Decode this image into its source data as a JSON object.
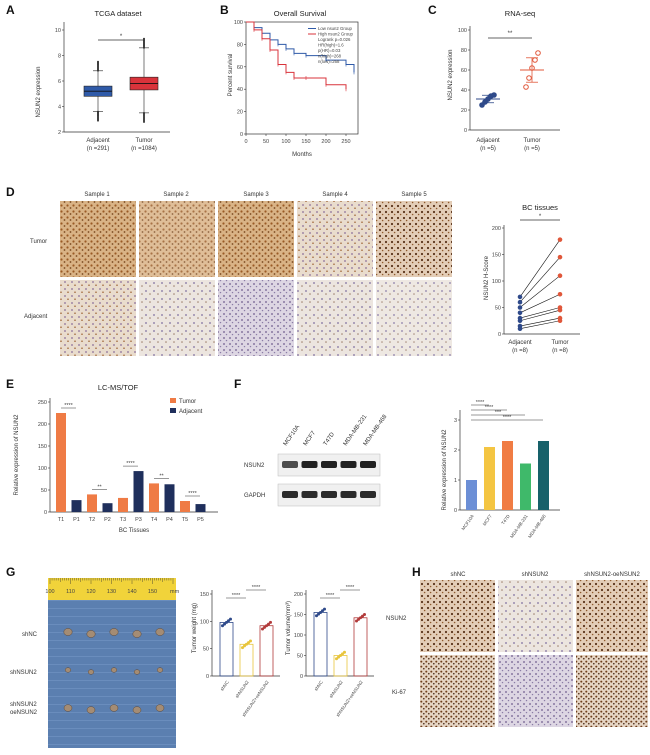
{
  "panels": {
    "A": "A",
    "B": "B",
    "C": "C",
    "D": "D",
    "E": "E",
    "F": "F",
    "G": "G",
    "H": "H"
  },
  "panelA": {
    "title": "TCGA dataset",
    "ylabel": "NSUN2 expression",
    "sig": "*",
    "yticks": [
      "2",
      "4",
      "6",
      "8",
      "10"
    ],
    "groups": [
      {
        "name": "Adjacent",
        "n": "(n =291)",
        "color": "#2f5aa8"
      },
      {
        "name": "Tumor",
        "n": "(n =1084)",
        "color": "#d9333b"
      }
    ]
  },
  "panelB": {
    "title": "Overall Survival",
    "ylabel": "Percent survival",
    "xlabel": "Months",
    "yticks": [
      "0",
      "20",
      "40",
      "60",
      "80",
      "100"
    ],
    "xticks": [
      "0",
      "50",
      "100",
      "150",
      "200",
      "250"
    ],
    "legend": [
      "Low nsun2 Group",
      "High nsun2 Group",
      "Logrank p=0.026",
      "HR(high)=1.6",
      "p(HR)=0.03",
      "n(high)=268",
      "n(low)=268"
    ],
    "colors": {
      "low": "#2f5aa8",
      "high": "#d9333b"
    }
  },
  "panelC": {
    "title": "RNA-seq",
    "ylabel": "NSUN2 expression",
    "sig": "**",
    "yticks": [
      "0",
      "20",
      "40",
      "60",
      "80",
      "100"
    ],
    "groups": [
      {
        "name": "Adjacent",
        "n": "(n =5)",
        "color": "#2f4a8a"
      },
      {
        "name": "Tumor",
        "n": "(n =5)",
        "color": "#e0573a"
      }
    ]
  },
  "panelD": {
    "samples": [
      "Sample 1",
      "Sample 2",
      "Sample 3",
      "Sample 4",
      "Sample 5"
    ],
    "rows": [
      "Tumor",
      "Adjacent"
    ],
    "plot": {
      "title": "BC tissues",
      "sig": "*",
      "ylabel": "NSUN2 H-Score",
      "yticks": [
        "0",
        "50",
        "100",
        "150",
        "200"
      ],
      "groups": [
        "Adjacent",
        "Tumor"
      ],
      "n": [
        "(n =8)",
        "(n =8)"
      ],
      "colors": {
        "adjacent": "#2f4a8a",
        "tumor": "#e0573a"
      }
    }
  },
  "panelE": {
    "title": "LC-MS/TOF",
    "ylabel": "Relative expression of NSUN2",
    "xlabel": "BC Tissues",
    "legend": [
      "Tumor",
      "Adjacent"
    ],
    "colors": {
      "tumor": "#ef7b45",
      "adjacent": "#1f2f5c"
    },
    "yticks": [
      "0",
      "50",
      "100",
      "150",
      "200",
      "250"
    ],
    "categories": [
      "T1",
      "P1",
      "T2",
      "P2",
      "T3",
      "P3",
      "T4",
      "P4",
      "T5",
      "P5"
    ],
    "sigs": [
      "****",
      "**",
      "****",
      "**",
      "****"
    ]
  },
  "panelF": {
    "cells": [
      "MCF10A",
      "MCF7",
      "T47D",
      "MDA-MB-231",
      "MDA-MB-468"
    ],
    "blots": [
      "NSUN2",
      "GAPDH"
    ],
    "ylabel": "Relative expression of NSUN2",
    "yticks": [
      "0",
      "1",
      "2",
      "3"
    ],
    "sigs": [
      "****",
      "****",
      "***",
      "****"
    ]
  },
  "panelG": {
    "ruler": [
      "100",
      "110",
      "120",
      "130",
      "140",
      "150"
    ],
    "ruler_unit": "mm",
    "groups": [
      "shNC",
      "shNSUN2",
      "shNSUN2-\noeNSUN2"
    ],
    "group_labels": [
      "shNC",
      "shNSUN2",
      "shNSUN2",
      "oeNSUN2"
    ],
    "weight": {
      "ylabel": "Tumor weight (mg)",
      "yticks": [
        "0",
        "50",
        "100",
        "150"
      ],
      "sigs": [
        "****",
        "****"
      ],
      "xcats": [
        "shNC",
        "shNSUN2",
        "shNSUN2+oeNSUN2"
      ]
    },
    "volume": {
      "ylabel": "Tumor volume(mm³)",
      "yticks": [
        "0",
        "50",
        "100",
        "150",
        "200"
      ],
      "sigs": [
        "****",
        "****"
      ],
      "xcats": [
        "shNC",
        "shNSUN2",
        "shNSUN2+oeNSUN2"
      ]
    }
  },
  "panelH": {
    "cols": [
      "shNC",
      "shNSUN2",
      "shNSUN2-oeNSUN2"
    ],
    "rows": [
      "NSUN2",
      "Ki-67"
    ]
  },
  "chart_data": [
    {
      "type": "box",
      "panel": "A",
      "title": "TCGA dataset",
      "ylabel": "NSUN2 expression",
      "ylim": [
        2,
        10
      ],
      "categories": [
        "Adjacent",
        "Tumor"
      ],
      "series": [
        {
          "name": "Adjacent",
          "q1": 4.8,
          "median": 5.2,
          "q3": 5.6,
          "min": 3.6,
          "max": 6.8
        },
        {
          "name": "Tumor",
          "q1": 5.3,
          "median": 5.8,
          "q3": 6.3,
          "min": 3.5,
          "max": 8.6
        }
      ]
    },
    {
      "type": "line",
      "panel": "B",
      "title": "Overall Survival",
      "xlabel": "Months",
      "ylabel": "Percent survival",
      "xlim": [
        0,
        280
      ],
      "ylim": [
        0,
        100
      ],
      "series": [
        {
          "name": "Low nsun2 Group",
          "x": [
            0,
            20,
            40,
            60,
            80,
            100,
            120,
            150,
            200,
            250,
            270
          ],
          "y": [
            100,
            95,
            90,
            84,
            80,
            76,
            72,
            70,
            66,
            62,
            55
          ]
        },
        {
          "name": "High nsun2 Group",
          "x": [
            0,
            20,
            40,
            60,
            80,
            100,
            120,
            150,
            200,
            250
          ],
          "y": [
            100,
            93,
            85,
            75,
            62,
            55,
            50,
            50,
            44,
            40
          ]
        }
      ]
    },
    {
      "type": "scatter",
      "panel": "C",
      "title": "RNA-seq",
      "ylabel": "NSUN2 expression",
      "ylim": [
        0,
        100
      ],
      "categories": [
        "Adjacent",
        "Tumor"
      ],
      "series": [
        {
          "name": "Adjacent",
          "values": [
            25,
            28,
            31,
            34,
            35
          ],
          "mean": 31
        },
        {
          "name": "Tumor",
          "values": [
            43,
            52,
            62,
            70,
            77
          ],
          "mean": 60
        }
      ]
    },
    {
      "type": "line",
      "panel": "D",
      "title": "BC tissues",
      "ylabel": "NSUN2 H-Score",
      "ylim": [
        0,
        200
      ],
      "categories": [
        "Adjacent",
        "Tumor"
      ],
      "pairs": [
        [
          70,
          178
        ],
        [
          60,
          145
        ],
        [
          50,
          110
        ],
        [
          40,
          75
        ],
        [
          30,
          50
        ],
        [
          25,
          45
        ],
        [
          15,
          30
        ],
        [
          10,
          25
        ]
      ]
    },
    {
      "type": "bar",
      "panel": "E",
      "title": "LC-MS/TOF",
      "ylabel": "Relative expression of NSUN2",
      "xlabel": "BC Tissues",
      "ylim": [
        0,
        250
      ],
      "categories": [
        "T1",
        "P1",
        "T2",
        "P2",
        "T3",
        "P3",
        "T4",
        "P4",
        "T5",
        "P5"
      ],
      "values": [
        225,
        27,
        40,
        20,
        32,
        93,
        65,
        63,
        25,
        18
      ]
    },
    {
      "type": "bar",
      "panel": "F",
      "ylabel": "Relative expression of NSUN2",
      "ylim": [
        0,
        3
      ],
      "categories": [
        "MCF10A",
        "MCF7",
        "T47D",
        "MDA-MB-231",
        "MDA-MB-468"
      ],
      "values": [
        1.0,
        2.1,
        2.3,
        1.55,
        2.3
      ],
      "colors": [
        "#6c8fd6",
        "#f4c542",
        "#f07c44",
        "#3fb96a",
        "#17616a"
      ]
    },
    {
      "type": "bar",
      "panel": "G-weight",
      "ylabel": "Tumor weight (mg)",
      "ylim": [
        0,
        150
      ],
      "categories": [
        "shNC",
        "shNSUN2",
        "shNSUN2+oeNSUN2"
      ],
      "values": [
        98,
        58,
        92
      ]
    },
    {
      "type": "bar",
      "panel": "G-volume",
      "ylabel": "Tumor volume(mm³)",
      "ylim": [
        0,
        200
      ],
      "categories": [
        "shNC",
        "shNSUN2",
        "shNSUN2+oeNSUN2"
      ],
      "values": [
        155,
        50,
        142
      ]
    }
  ]
}
